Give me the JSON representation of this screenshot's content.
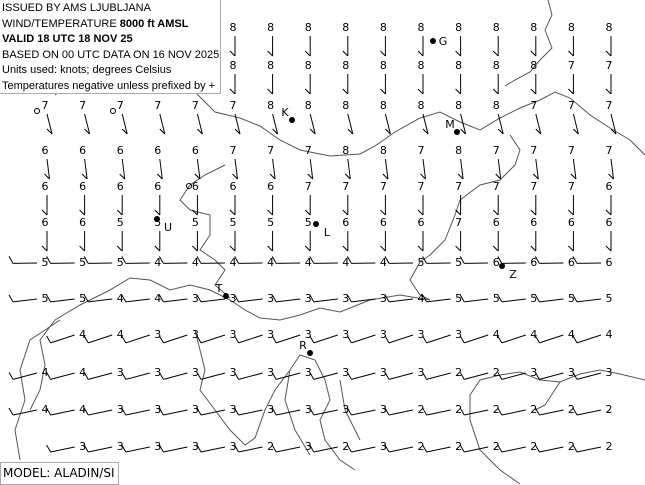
{
  "header": {
    "issued_by": "ISSUED BY AMS LJUBLJANA",
    "product_prefix": "WIND/TEMPERATURE ",
    "level": "8000 ft AMSL",
    "valid": "VALID 18 UTC 18 NOV 25",
    "based_on": "BASED ON 00 UTC DATA ON 16 NOV 2025",
    "units": "Units used: knots; degrees Celsius",
    "note": "Temperatures negative unless prefixed by +"
  },
  "model": "MODEL: ALADIN/SI",
  "colors": {
    "coastline": "#555555",
    "barb": "#000000",
    "text": "#000000"
  },
  "stations": [
    "G",
    "K",
    "M",
    "U",
    "L",
    "Z",
    "T",
    "R"
  ],
  "temperature_grid": [
    [
      "",
      "",
      "",
      "",
      "",
      "8",
      "8",
      "8",
      "8",
      "8",
      "8",
      "8",
      "8",
      "8",
      "8",
      "8"
    ],
    [
      "",
      "",
      "",
      "",
      "",
      "8",
      "8",
      "8",
      "8",
      "8",
      "8",
      "8",
      "8",
      "8",
      "7",
      "7"
    ],
    [
      "7",
      "7",
      "7",
      "7",
      "7",
      "7",
      "8",
      "8",
      "8",
      "8",
      "8",
      "8",
      "8",
      "7",
      "7",
      "7"
    ],
    [
      "6",
      "6",
      "6",
      "6",
      "6",
      "7",
      "7",
      "7",
      "8",
      "8",
      "7",
      "8",
      "7",
      "7",
      "7",
      "7"
    ],
    [
      "6",
      "6",
      "6",
      "6",
      "6",
      "6",
      "6",
      "7",
      "7",
      "7",
      "7",
      "7",
      "7",
      "7",
      "7",
      "6"
    ],
    [
      "6",
      "6",
      "5",
      "5",
      "5",
      "5",
      "5",
      "5",
      "6",
      "6",
      "6",
      "7",
      "6",
      "6",
      "6",
      "6"
    ],
    [
      "5",
      "5",
      "5",
      "4",
      "4",
      "4",
      "4",
      "4",
      "4",
      "4",
      "5",
      "5",
      "6",
      "6",
      "6",
      "6"
    ],
    [
      "5",
      "5",
      "4",
      "4",
      "3",
      "3",
      "3",
      "3",
      "3",
      "3",
      "4",
      "5",
      "5",
      "5",
      "5",
      "5"
    ],
    [
      "",
      "4",
      "4",
      "3",
      "3",
      "3",
      "3",
      "3",
      "3",
      "3",
      "3",
      "3",
      "4",
      "4",
      "4",
      "4"
    ],
    [
      "4",
      "4",
      "3",
      "3",
      "3",
      "3",
      "3",
      "3",
      "3",
      "3",
      "3",
      "2",
      "2",
      "3",
      "3",
      "3"
    ],
    [
      "4",
      "4",
      "3",
      "3",
      "3",
      "3",
      "3",
      "3",
      "3",
      "3",
      "2",
      "2",
      "2",
      "2",
      "2",
      "2"
    ],
    [
      "",
      "3",
      "3",
      "3",
      "3",
      "3",
      "2",
      "3",
      "2",
      "3",
      "2",
      "2",
      "2",
      "2",
      "2",
      "2"
    ]
  ],
  "wind_direction_deg_by_row": [
    350,
    345,
    320,
    330,
    345,
    340,
    300,
    285,
    250,
    260,
    270,
    270
  ]
}
